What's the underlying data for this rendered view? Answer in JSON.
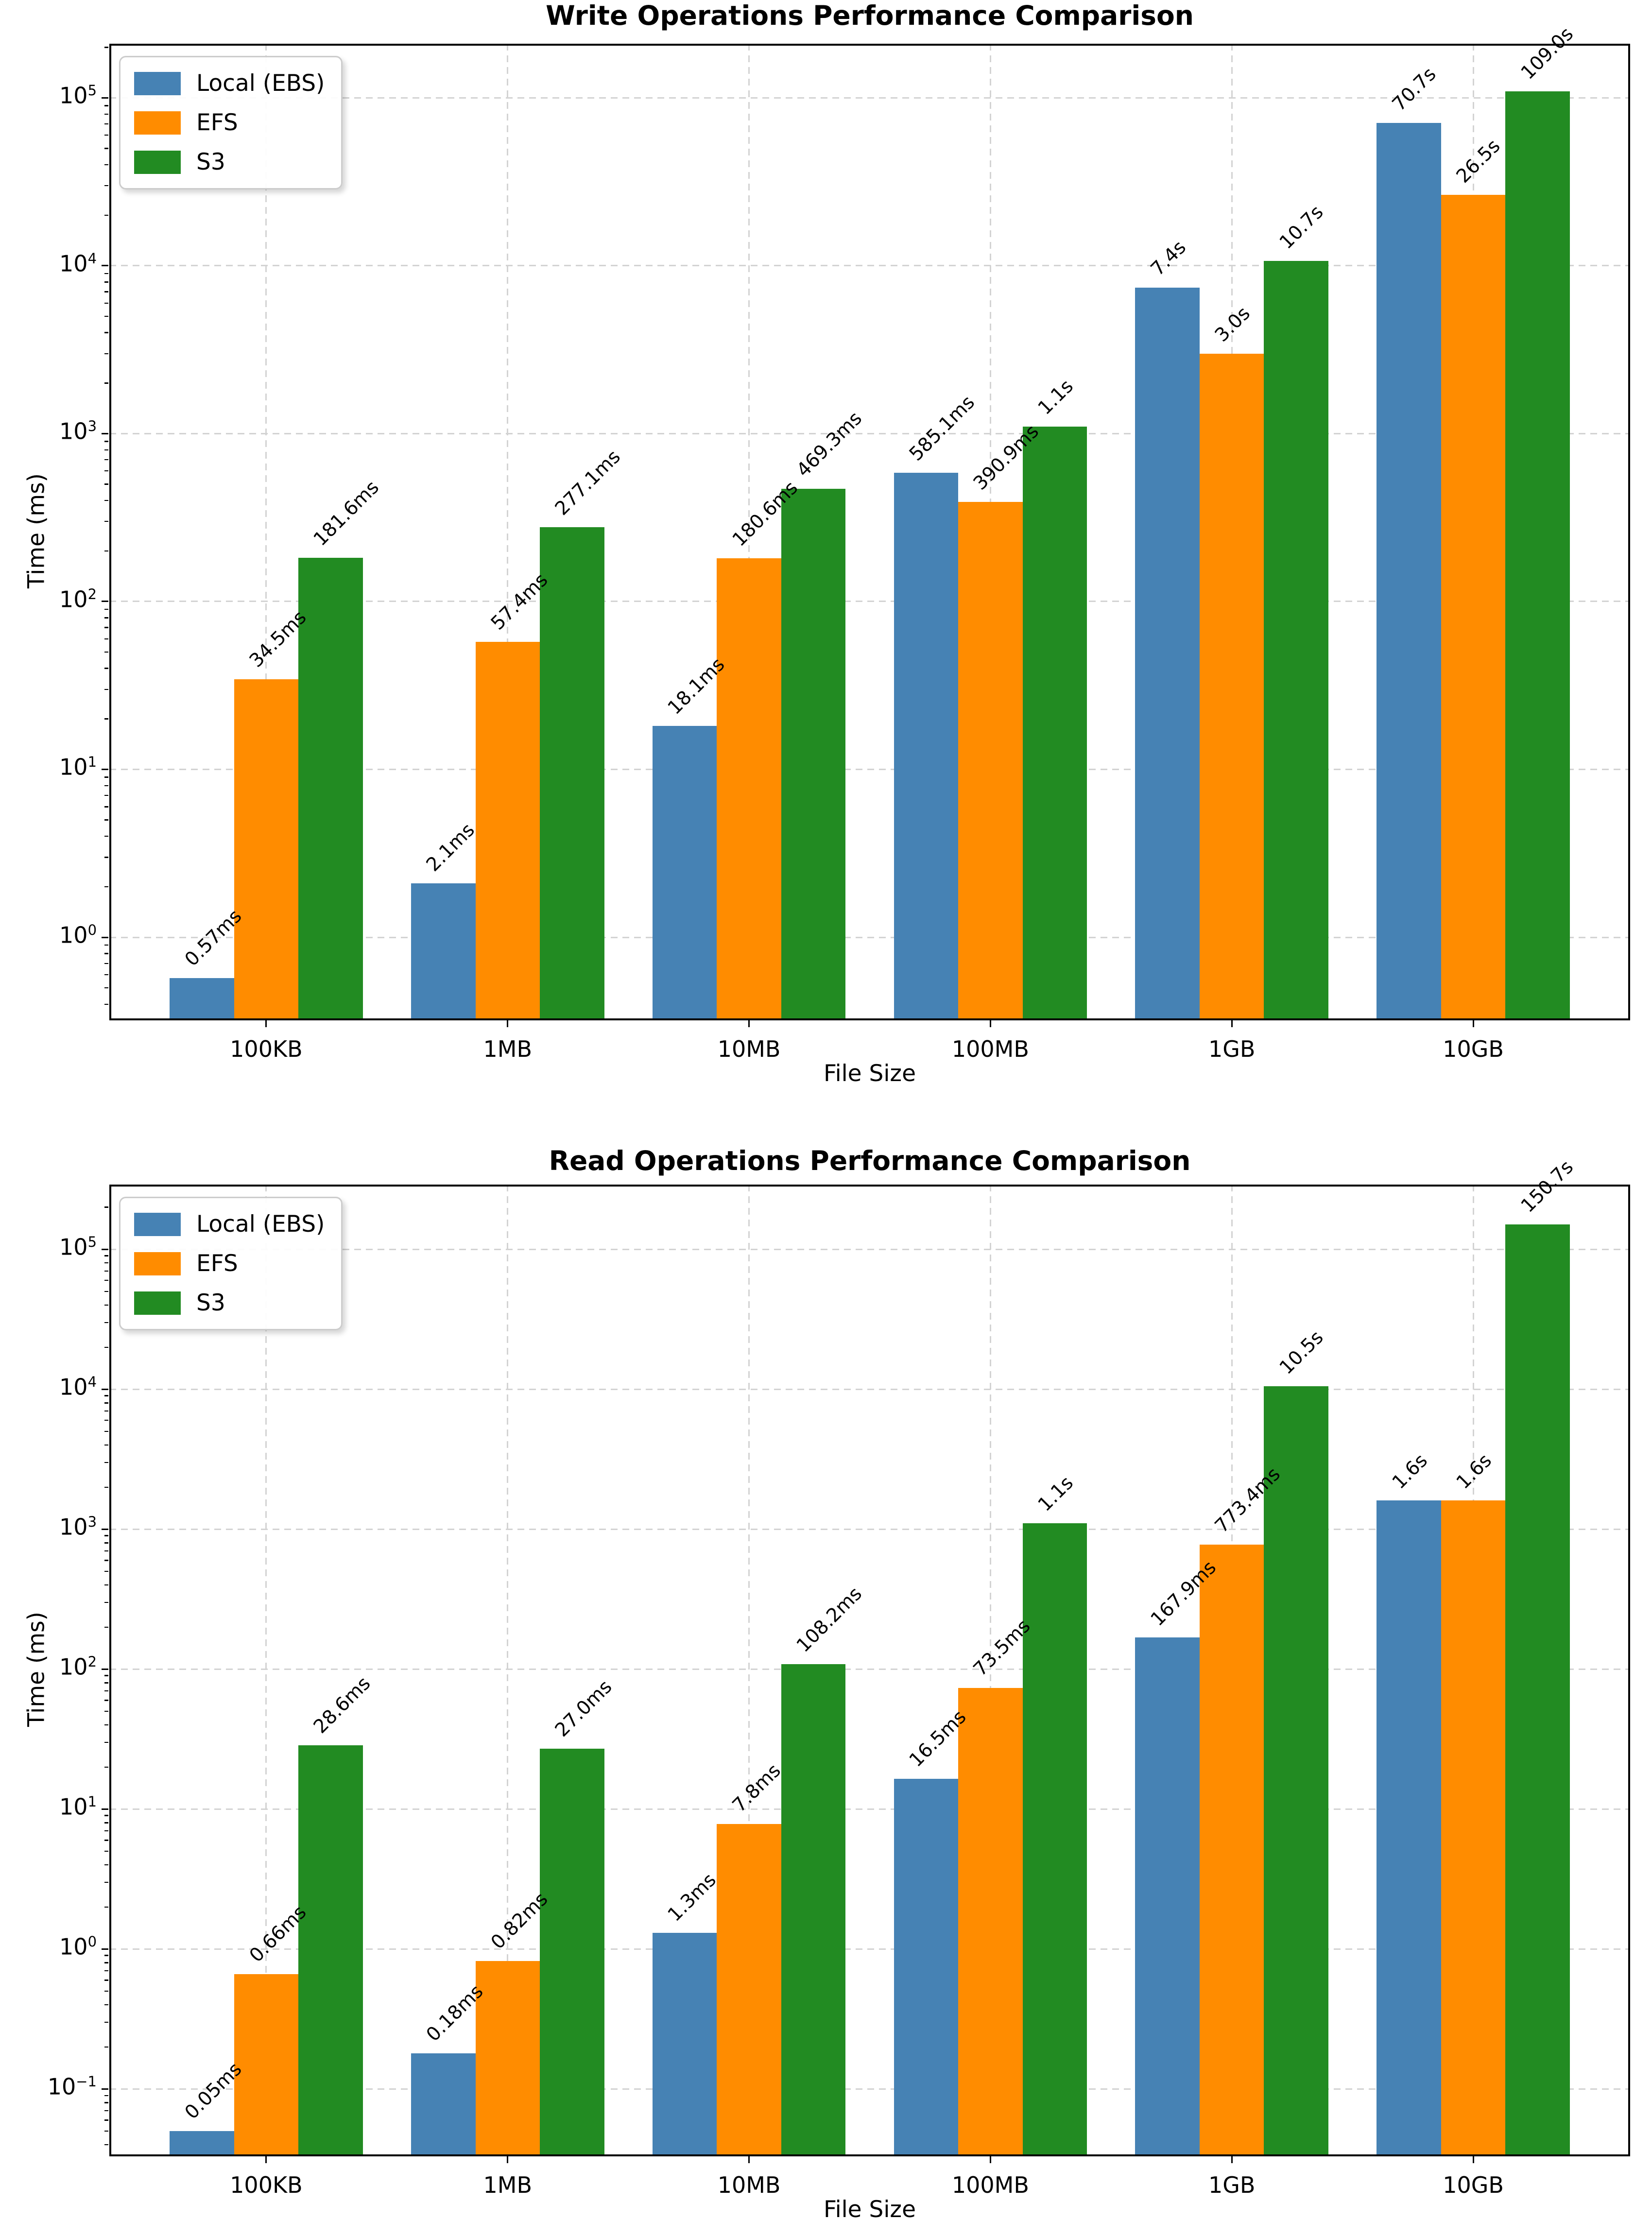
{
  "chart_data": [
    {
      "type": "bar",
      "title": "Write Operations Performance Comparison",
      "xlabel": "File Size",
      "ylabel": "Time (ms)",
      "yscale": "log",
      "grid": true,
      "legend_position": "upper left",
      "categories": [
        "100KB",
        "1MB",
        "10MB",
        "100MB",
        "1GB",
        "10GB"
      ],
      "series": [
        {
          "name": "Local (EBS)",
          "color": "#4682B4",
          "values_ms": [
            0.57,
            2.1,
            18.1,
            585.1,
            7400,
            70700
          ],
          "labels": [
            "0.57ms",
            "2.1ms",
            "18.1ms",
            "585.1ms",
            "7.4s",
            "70.7s"
          ]
        },
        {
          "name": "EFS",
          "color": "#FF8C00",
          "values_ms": [
            34.5,
            57.4,
            180.6,
            390.9,
            3000,
            26500
          ],
          "labels": [
            "34.5ms",
            "57.4ms",
            "180.6ms",
            "390.9ms",
            "3.0s",
            "26.5s"
          ]
        },
        {
          "name": "S3",
          "color": "#228B22",
          "values_ms": [
            181.6,
            277.1,
            469.3,
            1100,
            10700,
            109000
          ],
          "labels": [
            "181.6ms",
            "277.1ms",
            "469.3ms",
            "1.1s",
            "10.7s",
            "109.0s"
          ]
        }
      ],
      "ylim_ms": [
        0.32,
        210000
      ],
      "ytick_exponents": [
        0,
        1,
        2,
        3,
        4,
        5
      ]
    },
    {
      "type": "bar",
      "title": "Read Operations Performance Comparison",
      "xlabel": "File Size",
      "ylabel": "Time (ms)",
      "yscale": "log",
      "grid": true,
      "legend_position": "upper left",
      "categories": [
        "100KB",
        "1MB",
        "10MB",
        "100MB",
        "1GB",
        "10GB"
      ],
      "series": [
        {
          "name": "Local (EBS)",
          "color": "#4682B4",
          "values_ms": [
            0.05,
            0.18,
            1.3,
            16.5,
            167.9,
            1600
          ],
          "labels": [
            "0.05ms",
            "0.18ms",
            "1.3ms",
            "16.5ms",
            "167.9ms",
            "1.6s"
          ]
        },
        {
          "name": "EFS",
          "color": "#FF8C00",
          "values_ms": [
            0.66,
            0.82,
            7.8,
            73.5,
            773.4,
            1600
          ],
          "labels": [
            "0.66ms",
            "0.82ms",
            "7.8ms",
            "73.5ms",
            "773.4ms",
            "1.6s"
          ]
        },
        {
          "name": "S3",
          "color": "#228B22",
          "values_ms": [
            28.6,
            27.0,
            108.2,
            1100,
            10500,
            150700
          ],
          "labels": [
            "28.6ms",
            "27.0ms",
            "108.2ms",
            "1.1s",
            "10.5s",
            "150.7s"
          ]
        }
      ],
      "ylim_ms": [
        0.033,
        290000
      ],
      "ytick_exponents": [
        -1,
        0,
        1,
        2,
        3,
        4,
        5
      ]
    }
  ]
}
